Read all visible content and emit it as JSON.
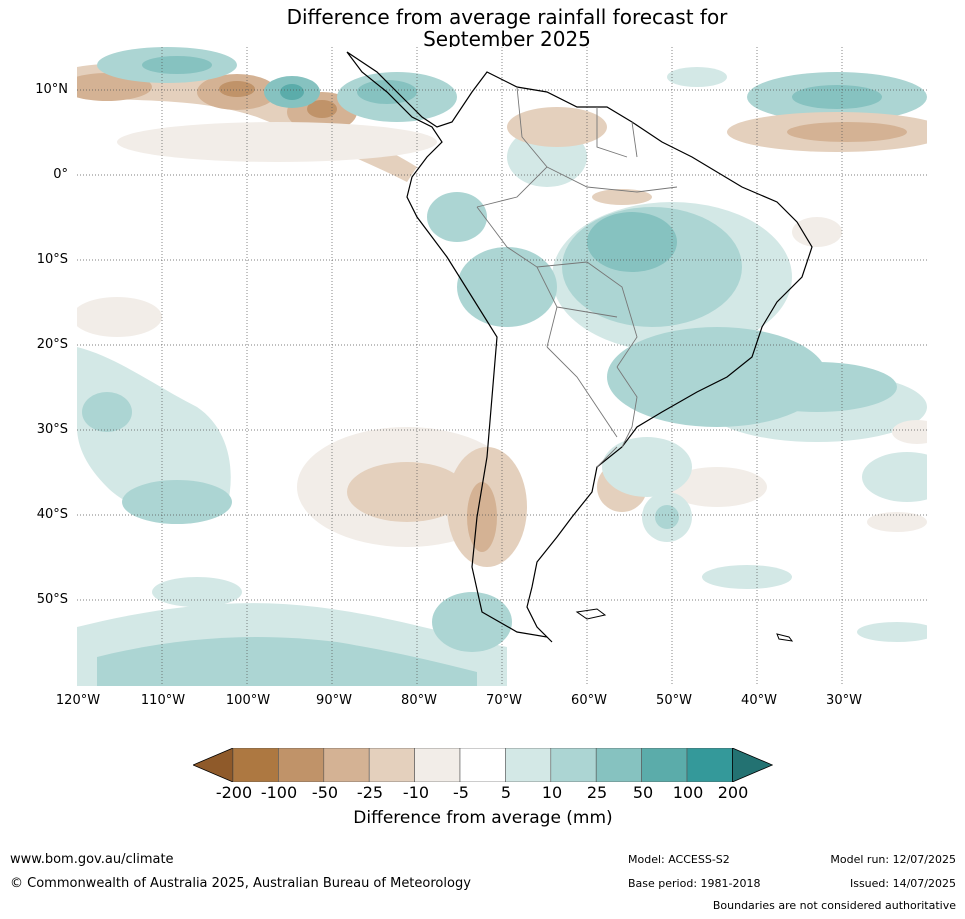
{
  "title": {
    "line1": "Difference from average rainfall forecast for",
    "line2": "September 2025"
  },
  "map": {
    "lat_labels": [
      "10°N",
      "0°",
      "10°S",
      "20°S",
      "30°S",
      "40°S",
      "50°S"
    ],
    "lon_labels": [
      "120°W",
      "110°W",
      "100°W",
      "90°W",
      "80°W",
      "70°W",
      "60°W",
      "50°W",
      "40°W",
      "30°W"
    ]
  },
  "colorbar": {
    "labels": [
      "-200",
      "-100",
      "-50",
      "-25",
      "-10",
      "-5",
      "5",
      "10",
      "25",
      "50",
      "100",
      "200"
    ],
    "colors": [
      "#8f5a2a",
      "#ad7841",
      "#c09369",
      "#d4b294",
      "#e4d0bd",
      "#f2ede8",
      "#ffffff",
      "#d3e8e6",
      "#acd5d3",
      "#86c2c0",
      "#5bacaa",
      "#34999a",
      "#237272"
    ],
    "title": "Difference from average (mm)"
  },
  "footer": {
    "url": "www.bom.gov.au/climate",
    "copyright": "© Commonwealth of Australia 2025, Australian Bureau of Meteorology",
    "model": "Model: ACCESS-S2",
    "base_period": "Base period: 1981-2018",
    "model_run": "Model run: 12/07/2025",
    "issued": "Issued: 14/07/2025",
    "disclaimer": "Boundaries are not considered authoritative"
  }
}
